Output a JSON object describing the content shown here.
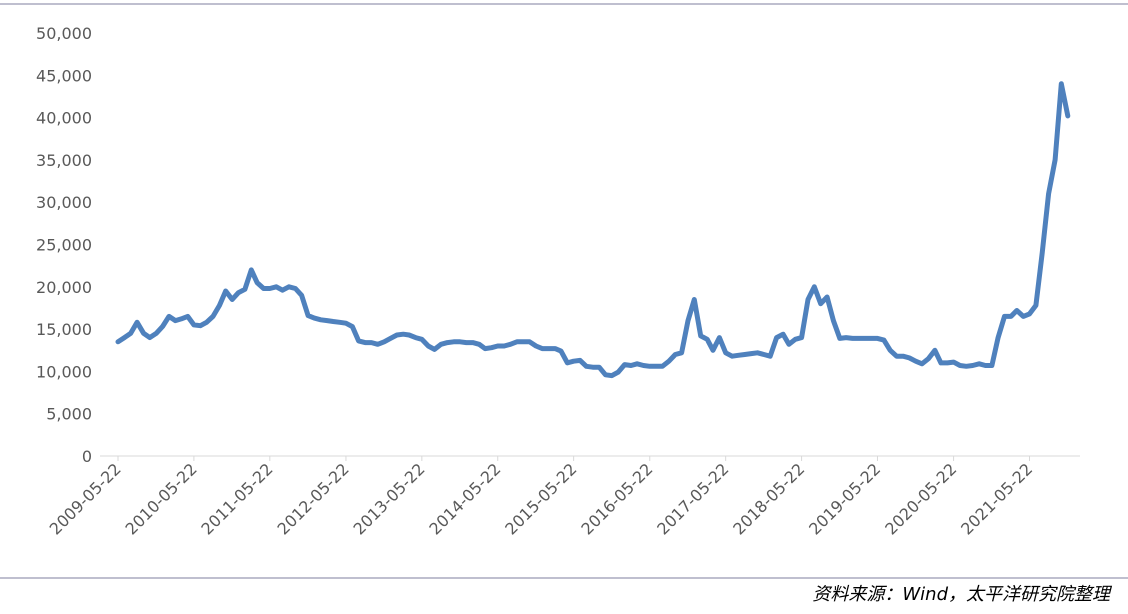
{
  "chart_data": {
    "type": "line",
    "source": "资料来源：Wind，太平洋研究院整理",
    "x": [
      "2009-05-22",
      "2009-06-22",
      "2009-07-22",
      "2009-08-22",
      "2009-09-22",
      "2009-10-22",
      "2009-11-22",
      "2009-12-22",
      "2010-01-22",
      "2010-02-22",
      "2010-03-22",
      "2010-04-22",
      "2010-05-22",
      "2010-06-22",
      "2010-07-22",
      "2010-08-22",
      "2010-09-22",
      "2010-10-22",
      "2010-11-22",
      "2010-12-22",
      "2011-01-22",
      "2011-02-22",
      "2011-03-22",
      "2011-04-22",
      "2011-05-22",
      "2011-06-22",
      "2011-07-22",
      "2011-08-22",
      "2011-09-22",
      "2011-10-22",
      "2011-11-22",
      "2011-12-22",
      "2012-01-22",
      "2012-02-22",
      "2012-03-22",
      "2012-04-22",
      "2012-05-22",
      "2012-06-22",
      "2012-07-22",
      "2012-08-22",
      "2012-09-22",
      "2012-10-22",
      "2012-11-22",
      "2012-12-22",
      "2013-01-22",
      "2013-02-22",
      "2013-03-22",
      "2013-04-22",
      "2013-05-22",
      "2013-06-22",
      "2013-07-22",
      "2013-08-22",
      "2013-09-22",
      "2013-10-22",
      "2013-11-22",
      "2013-12-22",
      "2014-01-22",
      "2014-02-22",
      "2014-03-22",
      "2014-04-22",
      "2014-05-22",
      "2014-06-22",
      "2014-07-22",
      "2014-08-22",
      "2014-09-22",
      "2014-10-22",
      "2014-11-22",
      "2014-12-22",
      "2015-01-22",
      "2015-02-22",
      "2015-03-22",
      "2015-04-22",
      "2015-05-22",
      "2015-06-22",
      "2015-07-22",
      "2015-08-22",
      "2015-09-22",
      "2015-10-22",
      "2015-11-22",
      "2015-12-22",
      "2016-01-22",
      "2016-02-22",
      "2016-03-22",
      "2016-04-22",
      "2016-05-22",
      "2016-06-22",
      "2016-07-22",
      "2016-08-22",
      "2016-09-22",
      "2016-10-22",
      "2016-11-22",
      "2016-12-22",
      "2017-01-22",
      "2017-02-22",
      "2017-03-22",
      "2017-04-22",
      "2017-05-22",
      "2017-06-22",
      "2017-07-22",
      "2017-08-22",
      "2017-09-22",
      "2017-10-22",
      "2017-11-22",
      "2017-12-22",
      "2018-01-22",
      "2018-02-22",
      "2018-03-22",
      "2018-04-22",
      "2018-05-22",
      "2018-06-22",
      "2018-07-22",
      "2018-08-22",
      "2018-09-22",
      "2018-10-22",
      "2018-11-22",
      "2018-12-22",
      "2019-01-22",
      "2019-02-22",
      "2019-03-22",
      "2019-04-22",
      "2019-05-22",
      "2019-06-22",
      "2019-07-22",
      "2019-08-22",
      "2019-09-22",
      "2019-10-22",
      "2019-11-22",
      "2019-12-22",
      "2020-01-22",
      "2020-02-22",
      "2020-03-22",
      "2020-04-22",
      "2020-05-22",
      "2020-06-22",
      "2020-07-22",
      "2020-08-22",
      "2020-09-22",
      "2020-10-22",
      "2020-11-22",
      "2020-12-22",
      "2021-01-22",
      "2021-02-22",
      "2021-03-22",
      "2021-04-22",
      "2021-05-22",
      "2021-06-22",
      "2021-07-22",
      "2021-08-22",
      "2021-09-22",
      "2021-10-22",
      "2021-11-22"
    ],
    "series": [
      {
        "color": "#4f81bd",
        "values": [
          13500,
          14000,
          14500,
          15800,
          14500,
          14000,
          14500,
          15300,
          16500,
          16000,
          16200,
          16500,
          15500,
          15400,
          15800,
          16500,
          17800,
          19500,
          18500,
          19300,
          19700,
          22000,
          20500,
          19800,
          19800,
          20000,
          19600,
          20000,
          19800,
          19000,
          16600,
          16300,
          16100,
          16000,
          15900,
          15800,
          15700,
          15300,
          13600,
          13400,
          13400,
          13200,
          13500,
          13900,
          14300,
          14400,
          14300,
          14000,
          13800,
          13000,
          12600,
          13200,
          13400,
          13500,
          13500,
          13400,
          13400,
          13200,
          12700,
          12800,
          13000,
          13000,
          13200,
          13500,
          13500,
          13500,
          13000,
          12700,
          12700,
          12700,
          12400,
          11000,
          11200,
          11300,
          10600,
          10500,
          10500,
          9600,
          9500,
          9900,
          10800,
          10700,
          10900,
          10700,
          10600,
          10600,
          10600,
          11200,
          12000,
          12200,
          16000,
          18500,
          14200,
          13800,
          12500,
          14000,
          12200,
          11800,
          11900,
          12000,
          12100,
          12200,
          12000,
          11800,
          14000,
          14400,
          13200,
          13800,
          14000,
          18500,
          20000,
          18000,
          18800,
          16000,
          13900,
          14000,
          13900,
          13900,
          13900,
          13900,
          13900,
          13700,
          12500,
          11800,
          11800,
          11600,
          11200,
          10900,
          11500,
          12500,
          11000,
          11000,
          11100,
          10700,
          10600,
          10700,
          10900,
          10700,
          10700,
          14000,
          16500,
          16500,
          17200,
          16500,
          16800,
          17800,
          24000,
          31000,
          35000,
          44000,
          40200
        ]
      }
    ],
    "xlim": [
      "2009-05-22",
      "2021-12-22"
    ],
    "xticks": [
      "2009-05-22",
      "2010-05-22",
      "2011-05-22",
      "2012-05-22",
      "2013-05-22",
      "2014-05-22",
      "2015-05-22",
      "2016-05-22",
      "2017-05-22",
      "2018-05-22",
      "2019-05-22",
      "2020-05-22",
      "2021-05-22"
    ],
    "ylim": [
      0,
      50000
    ],
    "yticks": [
      0,
      {
        "value": 5000,
        "label": "5,000"
      },
      {
        "value": 10000,
        "label": "10,000"
      },
      {
        "value": 15000,
        "label": "15,000"
      },
      {
        "value": 20000,
        "label": "20,000"
      },
      {
        "value": 25000,
        "label": "25,000"
      },
      {
        "value": 30000,
        "label": "30,000"
      },
      {
        "value": 35000,
        "label": "35,000"
      },
      {
        "value": 40000,
        "label": "40,000"
      },
      {
        "value": 45000,
        "label": "45,000"
      },
      {
        "value": 50000,
        "label": "50,000"
      }
    ]
  }
}
